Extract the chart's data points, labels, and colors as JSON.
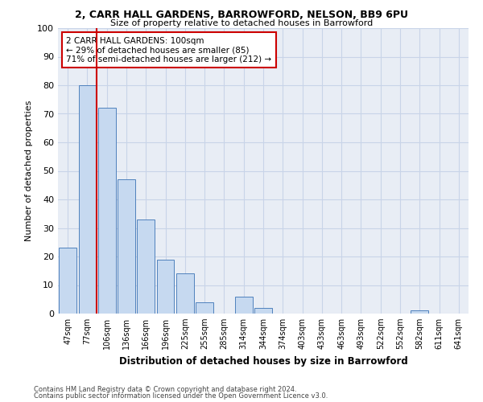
{
  "title1": "2, CARR HALL GARDENS, BARROWFORD, NELSON, BB9 6PU",
  "title2": "Size of property relative to detached houses in Barrowford",
  "xlabel": "Distribution of detached houses by size in Barrowford",
  "ylabel": "Number of detached properties",
  "categories": [
    "47sqm",
    "77sqm",
    "106sqm",
    "136sqm",
    "166sqm",
    "196sqm",
    "225sqm",
    "255sqm",
    "285sqm",
    "314sqm",
    "344sqm",
    "374sqm",
    "403sqm",
    "433sqm",
    "463sqm",
    "493sqm",
    "522sqm",
    "552sqm",
    "582sqm",
    "611sqm",
    "641sqm"
  ],
  "values": [
    23,
    80,
    72,
    47,
    33,
    19,
    14,
    4,
    0,
    6,
    2,
    0,
    0,
    0,
    0,
    0,
    0,
    0,
    1,
    0,
    0
  ],
  "bar_color": "#c6d9f0",
  "bar_edge_color": "#4f81bd",
  "vline_color": "#cc0000",
  "annotation_text": "2 CARR HALL GARDENS: 100sqm\n← 29% of detached houses are smaller (85)\n71% of semi-detached houses are larger (212) →",
  "annotation_box_color": "#cc0000",
  "ylim": [
    0,
    100
  ],
  "yticks": [
    0,
    10,
    20,
    30,
    40,
    50,
    60,
    70,
    80,
    90,
    100
  ],
  "background_color": "#ffffff",
  "plot_bg_color": "#e8edf5",
  "grid_color": "#c8d4e8",
  "footer1": "Contains HM Land Registry data © Crown copyright and database right 2024.",
  "footer2": "Contains public sector information licensed under the Open Government Licence v3.0."
}
